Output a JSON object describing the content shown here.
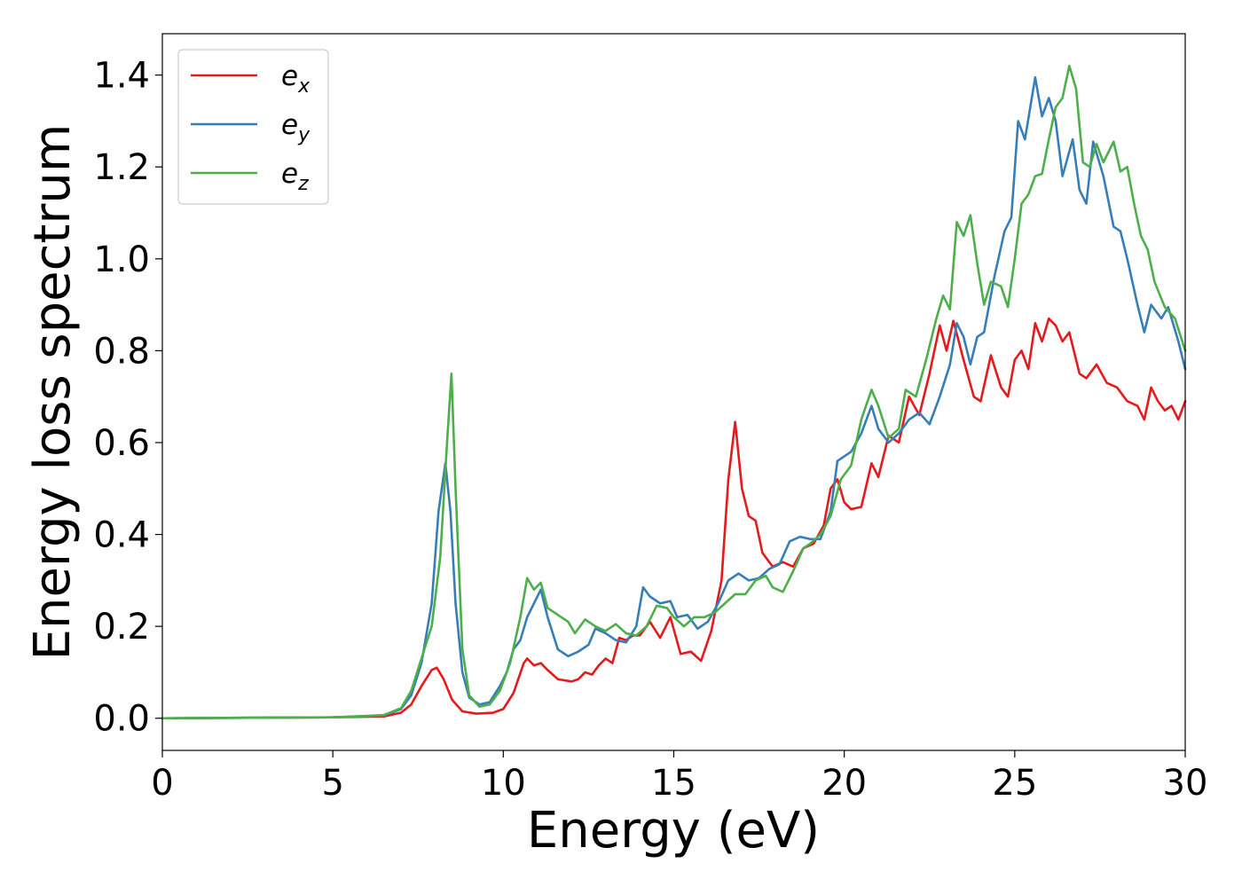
{
  "chart_data": {
    "type": "line",
    "xlabel": "Energy (eV)",
    "ylabel": "Energy loss spectrum",
    "xlim": [
      0,
      30
    ],
    "ylim": [
      -0.07,
      1.49
    ],
    "xticks": [
      0,
      5,
      10,
      15,
      20,
      25,
      30
    ],
    "xtick_labels": [
      "0",
      "5",
      "10",
      "15",
      "20",
      "25",
      "30"
    ],
    "yticks": [
      0.0,
      0.2,
      0.4,
      0.6,
      0.8,
      1.0,
      1.2,
      1.4
    ],
    "ytick_labels": [
      "0.0",
      "0.2",
      "0.4",
      "0.6",
      "0.8",
      "1.0",
      "1.2",
      "1.4"
    ],
    "grid": false,
    "legend_position": "top-left",
    "series": [
      {
        "name": "e",
        "subscript": "x",
        "color": "#e41a1c",
        "points": [
          [
            0,
            0.0
          ],
          [
            5,
            0.002
          ],
          [
            6.5,
            0.004
          ],
          [
            7.0,
            0.012
          ],
          [
            7.3,
            0.03
          ],
          [
            7.6,
            0.07
          ],
          [
            7.9,
            0.105
          ],
          [
            8.05,
            0.11
          ],
          [
            8.25,
            0.085
          ],
          [
            8.5,
            0.04
          ],
          [
            8.8,
            0.015
          ],
          [
            9.2,
            0.01
          ],
          [
            9.7,
            0.012
          ],
          [
            10.0,
            0.02
          ],
          [
            10.3,
            0.055
          ],
          [
            10.6,
            0.12
          ],
          [
            10.7,
            0.13
          ],
          [
            10.9,
            0.115
          ],
          [
            11.1,
            0.12
          ],
          [
            11.3,
            0.105
          ],
          [
            11.6,
            0.085
          ],
          [
            12.0,
            0.08
          ],
          [
            12.2,
            0.085
          ],
          [
            12.4,
            0.1
          ],
          [
            12.6,
            0.095
          ],
          [
            12.8,
            0.115
          ],
          [
            13.0,
            0.13
          ],
          [
            13.2,
            0.12
          ],
          [
            13.4,
            0.175
          ],
          [
            13.6,
            0.17
          ],
          [
            13.8,
            0.18
          ],
          [
            14.0,
            0.18
          ],
          [
            14.3,
            0.21
          ],
          [
            14.6,
            0.175
          ],
          [
            14.9,
            0.22
          ],
          [
            15.2,
            0.14
          ],
          [
            15.5,
            0.145
          ],
          [
            15.8,
            0.125
          ],
          [
            16.1,
            0.19
          ],
          [
            16.4,
            0.3
          ],
          [
            16.6,
            0.52
          ],
          [
            16.8,
            0.645
          ],
          [
            17.0,
            0.5
          ],
          [
            17.2,
            0.44
          ],
          [
            17.4,
            0.43
          ],
          [
            17.6,
            0.36
          ],
          [
            17.9,
            0.33
          ],
          [
            18.2,
            0.34
          ],
          [
            18.5,
            0.33
          ],
          [
            18.8,
            0.37
          ],
          [
            19.1,
            0.38
          ],
          [
            19.4,
            0.42
          ],
          [
            19.6,
            0.5
          ],
          [
            19.8,
            0.52
          ],
          [
            20.0,
            0.47
          ],
          [
            20.2,
            0.455
          ],
          [
            20.5,
            0.46
          ],
          [
            20.8,
            0.555
          ],
          [
            21.0,
            0.525
          ],
          [
            21.3,
            0.615
          ],
          [
            21.6,
            0.6
          ],
          [
            21.9,
            0.7
          ],
          [
            22.2,
            0.66
          ],
          [
            22.5,
            0.75
          ],
          [
            22.8,
            0.855
          ],
          [
            23.0,
            0.8
          ],
          [
            23.2,
            0.865
          ],
          [
            23.5,
            0.78
          ],
          [
            23.8,
            0.7
          ],
          [
            24.0,
            0.69
          ],
          [
            24.3,
            0.79
          ],
          [
            24.6,
            0.72
          ],
          [
            24.8,
            0.7
          ],
          [
            25.0,
            0.78
          ],
          [
            25.2,
            0.8
          ],
          [
            25.4,
            0.76
          ],
          [
            25.6,
            0.86
          ],
          [
            25.8,
            0.82
          ],
          [
            26.0,
            0.87
          ],
          [
            26.2,
            0.855
          ],
          [
            26.4,
            0.82
          ],
          [
            26.6,
            0.84
          ],
          [
            26.9,
            0.75
          ],
          [
            27.1,
            0.74
          ],
          [
            27.4,
            0.77
          ],
          [
            27.7,
            0.73
          ],
          [
            28.0,
            0.72
          ],
          [
            28.3,
            0.69
          ],
          [
            28.6,
            0.68
          ],
          [
            28.8,
            0.65
          ],
          [
            29.0,
            0.72
          ],
          [
            29.2,
            0.69
          ],
          [
            29.4,
            0.67
          ],
          [
            29.6,
            0.68
          ],
          [
            29.8,
            0.65
          ],
          [
            30.0,
            0.69
          ]
        ]
      },
      {
        "name": "e",
        "subscript": "y",
        "color": "#377eb8",
        "points": [
          [
            0,
            0.0
          ],
          [
            5,
            0.002
          ],
          [
            6.5,
            0.006
          ],
          [
            7.0,
            0.02
          ],
          [
            7.3,
            0.05
          ],
          [
            7.6,
            0.12
          ],
          [
            7.9,
            0.25
          ],
          [
            8.1,
            0.45
          ],
          [
            8.3,
            0.555
          ],
          [
            8.45,
            0.45
          ],
          [
            8.6,
            0.25
          ],
          [
            8.8,
            0.1
          ],
          [
            9.0,
            0.045
          ],
          [
            9.3,
            0.03
          ],
          [
            9.6,
            0.035
          ],
          [
            9.9,
            0.07
          ],
          [
            10.1,
            0.1
          ],
          [
            10.3,
            0.15
          ],
          [
            10.5,
            0.17
          ],
          [
            10.7,
            0.22
          ],
          [
            10.9,
            0.25
          ],
          [
            11.1,
            0.28
          ],
          [
            11.3,
            0.22
          ],
          [
            11.6,
            0.15
          ],
          [
            11.9,
            0.135
          ],
          [
            12.2,
            0.145
          ],
          [
            12.5,
            0.16
          ],
          [
            12.7,
            0.195
          ],
          [
            13.0,
            0.185
          ],
          [
            13.3,
            0.17
          ],
          [
            13.6,
            0.165
          ],
          [
            13.9,
            0.2
          ],
          [
            14.1,
            0.285
          ],
          [
            14.3,
            0.265
          ],
          [
            14.6,
            0.25
          ],
          [
            14.9,
            0.255
          ],
          [
            15.1,
            0.22
          ],
          [
            15.4,
            0.225
          ],
          [
            15.7,
            0.195
          ],
          [
            16.0,
            0.21
          ],
          [
            16.3,
            0.25
          ],
          [
            16.6,
            0.3
          ],
          [
            16.9,
            0.315
          ],
          [
            17.2,
            0.3
          ],
          [
            17.5,
            0.305
          ],
          [
            17.8,
            0.325
          ],
          [
            18.1,
            0.335
          ],
          [
            18.4,
            0.385
          ],
          [
            18.7,
            0.395
          ],
          [
            19.0,
            0.39
          ],
          [
            19.3,
            0.39
          ],
          [
            19.6,
            0.45
          ],
          [
            19.8,
            0.56
          ],
          [
            20.2,
            0.58
          ],
          [
            20.5,
            0.62
          ],
          [
            20.8,
            0.68
          ],
          [
            21.0,
            0.63
          ],
          [
            21.3,
            0.6
          ],
          [
            21.6,
            0.62
          ],
          [
            21.9,
            0.65
          ],
          [
            22.2,
            0.665
          ],
          [
            22.5,
            0.64
          ],
          [
            22.8,
            0.7
          ],
          [
            23.1,
            0.77
          ],
          [
            23.3,
            0.86
          ],
          [
            23.5,
            0.83
          ],
          [
            23.7,
            0.77
          ],
          [
            23.9,
            0.83
          ],
          [
            24.1,
            0.84
          ],
          [
            24.4,
            0.96
          ],
          [
            24.7,
            1.06
          ],
          [
            24.9,
            1.09
          ],
          [
            25.1,
            1.3
          ],
          [
            25.3,
            1.26
          ],
          [
            25.6,
            1.395
          ],
          [
            25.8,
            1.31
          ],
          [
            26.0,
            1.35
          ],
          [
            26.2,
            1.3
          ],
          [
            26.4,
            1.18
          ],
          [
            26.7,
            1.26
          ],
          [
            26.9,
            1.15
          ],
          [
            27.1,
            1.12
          ],
          [
            27.3,
            1.255
          ],
          [
            27.6,
            1.18
          ],
          [
            27.9,
            1.07
          ],
          [
            28.1,
            1.06
          ],
          [
            28.3,
            1.0
          ],
          [
            28.6,
            0.9
          ],
          [
            28.8,
            0.84
          ],
          [
            29.0,
            0.9
          ],
          [
            29.3,
            0.87
          ],
          [
            29.5,
            0.895
          ],
          [
            29.8,
            0.82
          ],
          [
            30.0,
            0.76
          ]
        ]
      },
      {
        "name": "e",
        "subscript": "z",
        "color": "#4daf4a",
        "points": [
          [
            0,
            0.0
          ],
          [
            5,
            0.002
          ],
          [
            6.5,
            0.007
          ],
          [
            7.0,
            0.022
          ],
          [
            7.3,
            0.06
          ],
          [
            7.6,
            0.13
          ],
          [
            7.9,
            0.2
          ],
          [
            8.15,
            0.35
          ],
          [
            8.35,
            0.6
          ],
          [
            8.48,
            0.75
          ],
          [
            8.6,
            0.5
          ],
          [
            8.8,
            0.15
          ],
          [
            9.0,
            0.05
          ],
          [
            9.3,
            0.025
          ],
          [
            9.6,
            0.03
          ],
          [
            9.9,
            0.06
          ],
          [
            10.2,
            0.12
          ],
          [
            10.5,
            0.22
          ],
          [
            10.7,
            0.305
          ],
          [
            10.9,
            0.28
          ],
          [
            11.1,
            0.295
          ],
          [
            11.3,
            0.24
          ],
          [
            11.6,
            0.225
          ],
          [
            11.9,
            0.21
          ],
          [
            12.1,
            0.185
          ],
          [
            12.4,
            0.215
          ],
          [
            12.7,
            0.2
          ],
          [
            13.0,
            0.19
          ],
          [
            13.3,
            0.205
          ],
          [
            13.6,
            0.185
          ],
          [
            13.9,
            0.18
          ],
          [
            14.2,
            0.2
          ],
          [
            14.5,
            0.245
          ],
          [
            14.8,
            0.24
          ],
          [
            15.0,
            0.22
          ],
          [
            15.3,
            0.2
          ],
          [
            15.6,
            0.22
          ],
          [
            15.9,
            0.22
          ],
          [
            16.2,
            0.23
          ],
          [
            16.5,
            0.25
          ],
          [
            16.8,
            0.27
          ],
          [
            17.1,
            0.27
          ],
          [
            17.4,
            0.3
          ],
          [
            17.7,
            0.31
          ],
          [
            17.9,
            0.285
          ],
          [
            18.2,
            0.275
          ],
          [
            18.5,
            0.32
          ],
          [
            18.8,
            0.37
          ],
          [
            19.0,
            0.38
          ],
          [
            19.3,
            0.4
          ],
          [
            19.6,
            0.44
          ],
          [
            19.9,
            0.52
          ],
          [
            20.2,
            0.55
          ],
          [
            20.5,
            0.65
          ],
          [
            20.8,
            0.715
          ],
          [
            21.0,
            0.68
          ],
          [
            21.3,
            0.61
          ],
          [
            21.6,
            0.63
          ],
          [
            21.8,
            0.715
          ],
          [
            22.1,
            0.7
          ],
          [
            22.4,
            0.78
          ],
          [
            22.7,
            0.87
          ],
          [
            22.9,
            0.92
          ],
          [
            23.1,
            0.89
          ],
          [
            23.3,
            1.08
          ],
          [
            23.5,
            1.05
          ],
          [
            23.7,
            1.095
          ],
          [
            23.9,
            0.99
          ],
          [
            24.1,
            0.9
          ],
          [
            24.3,
            0.95
          ],
          [
            24.6,
            0.94
          ],
          [
            24.8,
            0.895
          ],
          [
            25.0,
            1.0
          ],
          [
            25.2,
            1.12
          ],
          [
            25.4,
            1.14
          ],
          [
            25.6,
            1.18
          ],
          [
            25.8,
            1.185
          ],
          [
            26.0,
            1.26
          ],
          [
            26.2,
            1.33
          ],
          [
            26.4,
            1.35
          ],
          [
            26.6,
            1.42
          ],
          [
            26.8,
            1.37
          ],
          [
            27.0,
            1.21
          ],
          [
            27.2,
            1.2
          ],
          [
            27.4,
            1.25
          ],
          [
            27.6,
            1.21
          ],
          [
            27.9,
            1.255
          ],
          [
            28.1,
            1.19
          ],
          [
            28.3,
            1.2
          ],
          [
            28.5,
            1.12
          ],
          [
            28.7,
            1.05
          ],
          [
            28.9,
            1.02
          ],
          [
            29.1,
            0.95
          ],
          [
            29.4,
            0.895
          ],
          [
            29.7,
            0.87
          ],
          [
            30.0,
            0.8
          ]
        ]
      }
    ]
  }
}
